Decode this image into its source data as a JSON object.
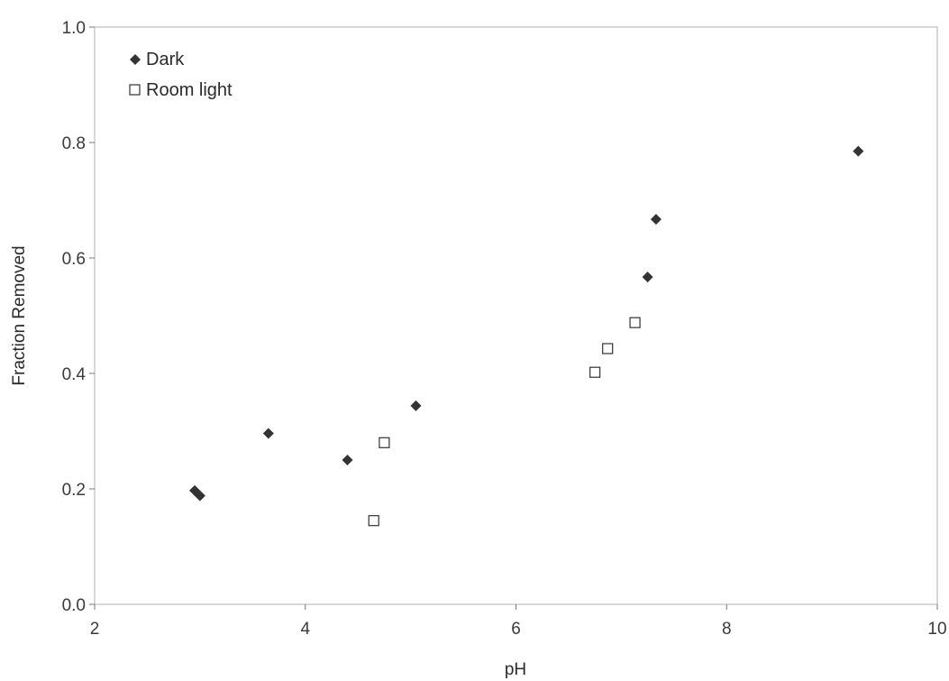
{
  "chart_data": {
    "type": "scatter",
    "title": "",
    "xlabel": "pH",
    "ylabel": "Fraction Removed",
    "xlim": [
      2,
      10
    ],
    "ylim": [
      0.0,
      1.0
    ],
    "xticks": [
      2,
      4,
      6,
      8,
      10
    ],
    "yticks": [
      0.0,
      0.2,
      0.4,
      0.6,
      0.8,
      1.0
    ],
    "xtick_labels": [
      "2",
      "4",
      "6",
      "8",
      "10"
    ],
    "ytick_labels": [
      "0.0",
      "0.2",
      "0.4",
      "0.6",
      "0.8",
      "1.0"
    ],
    "grid": false,
    "legend_position": "top-left",
    "series": [
      {
        "name": "Dark",
        "marker": "diamond",
        "color": "#333333",
        "points": [
          {
            "x": 2.95,
            "y": 0.197
          },
          {
            "x": 3.0,
            "y": 0.188
          },
          {
            "x": 3.65,
            "y": 0.296
          },
          {
            "x": 4.4,
            "y": 0.25
          },
          {
            "x": 5.05,
            "y": 0.344
          },
          {
            "x": 7.25,
            "y": 0.567
          },
          {
            "x": 7.33,
            "y": 0.667
          },
          {
            "x": 9.25,
            "y": 0.785
          }
        ]
      },
      {
        "name": "Room light",
        "marker": "square-open",
        "color": "#333333",
        "points": [
          {
            "x": 4.65,
            "y": 0.145
          },
          {
            "x": 4.75,
            "y": 0.28
          },
          {
            "x": 6.75,
            "y": 0.402
          },
          {
            "x": 6.87,
            "y": 0.443
          },
          {
            "x": 7.13,
            "y": 0.488
          }
        ]
      }
    ]
  }
}
